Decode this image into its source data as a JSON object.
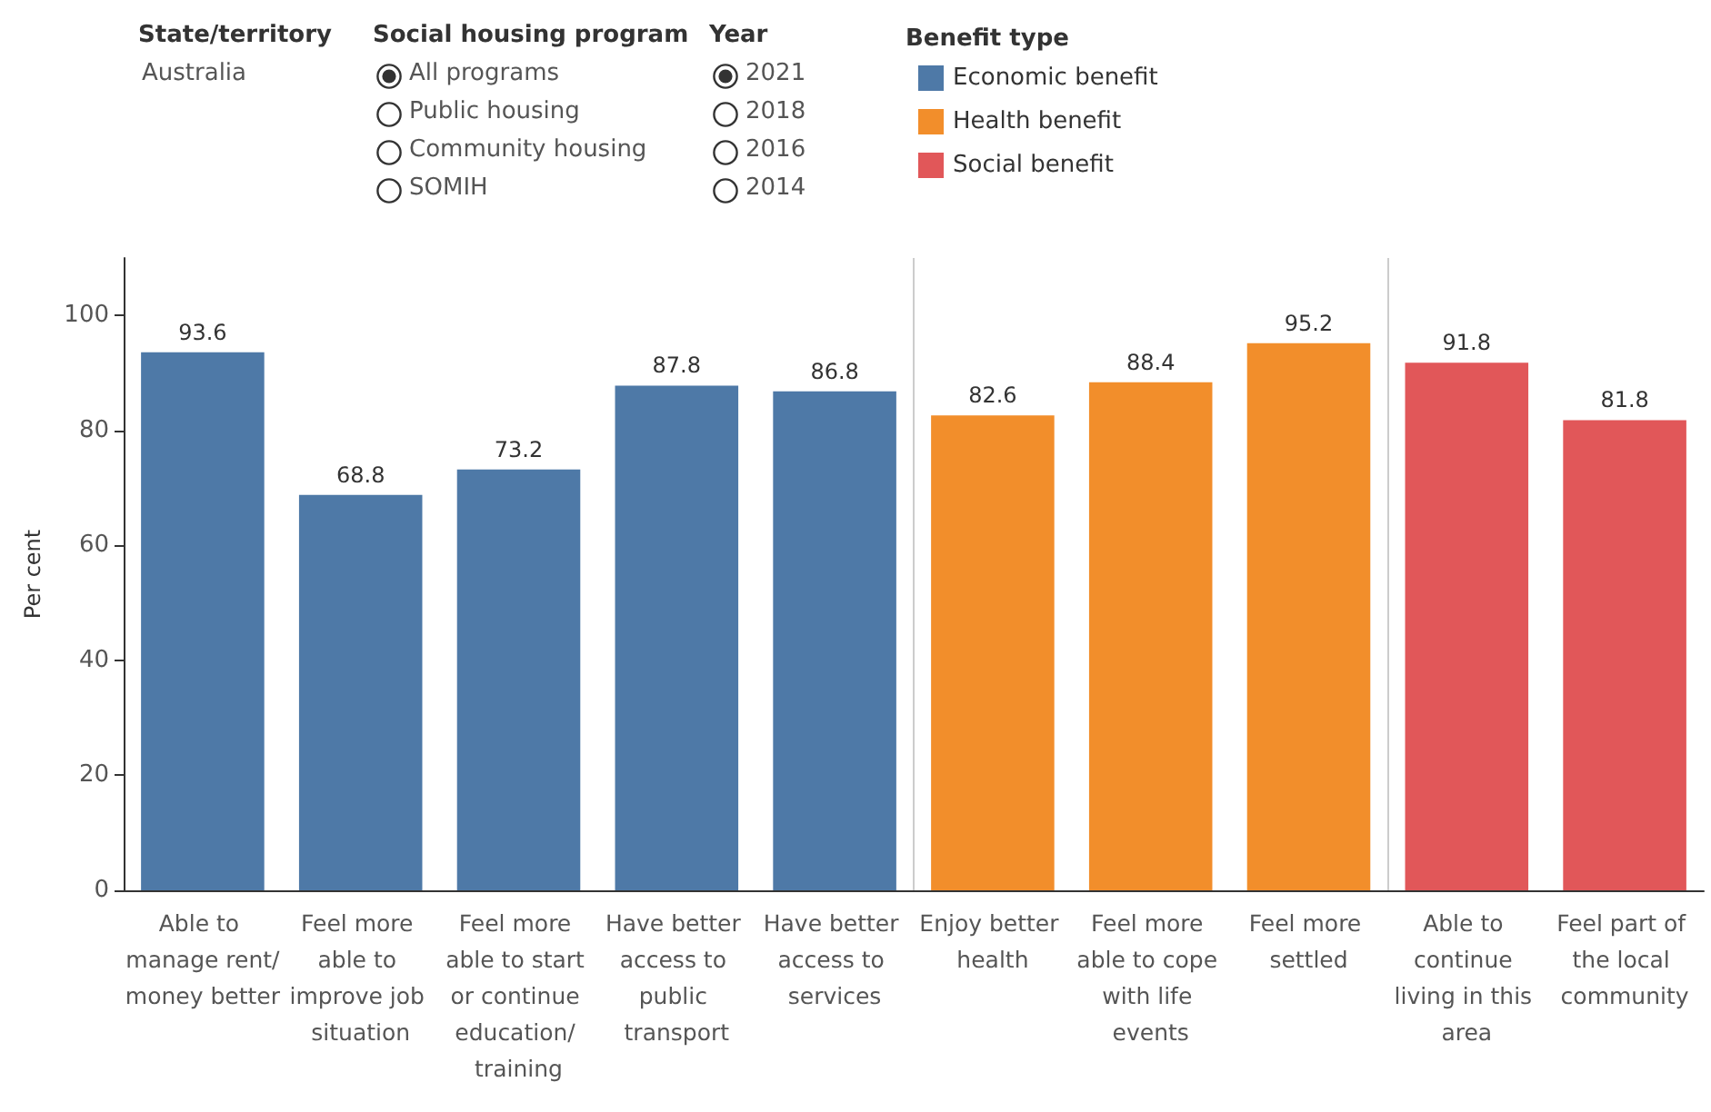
{
  "chart_data": {
    "type": "bar",
    "ylabel": "Per cent",
    "legend_title": "Benefit type",
    "legend": "top",
    "categories": [
      "Able to manage rent/money better",
      "Feel more able to improve job situation",
      "Feel more able to start or continue education/ training",
      "Have better access to public transport",
      "Have better access to services",
      "Enjoy better health",
      "Feel more able to cope with life events",
      "Feel more settled",
      "Able to continue living in this area",
      "Feel part of the local community"
    ],
    "series": [
      {
        "name": "Economic benefit",
        "color": "#4e79a7",
        "values": [
          93.6,
          68.8,
          73.2,
          87.8,
          86.8,
          null,
          null,
          null,
          null,
          null
        ]
      },
      {
        "name": "Health benefit",
        "color": "#f28e2b",
        "values": [
          null,
          null,
          null,
          null,
          null,
          82.6,
          88.4,
          95.2,
          null,
          null
        ]
      },
      {
        "name": "Social benefit",
        "color": "#e15759",
        "values": [
          null,
          null,
          null,
          null,
          null,
          null,
          null,
          null,
          91.8,
          81.8
        ]
      }
    ],
    "ylim": [
      0,
      110
    ],
    "yticks": [
      0,
      20,
      40,
      60,
      80,
      100
    ],
    "grid": false,
    "data_labels": true,
    "annotations": [
      "State/territory",
      "Australia",
      "Social housing program",
      "All programs",
      "Public housing",
      "Community housing",
      "SOMIH",
      "Year",
      "2021",
      "2018",
      "2016",
      "2014"
    ]
  }
}
